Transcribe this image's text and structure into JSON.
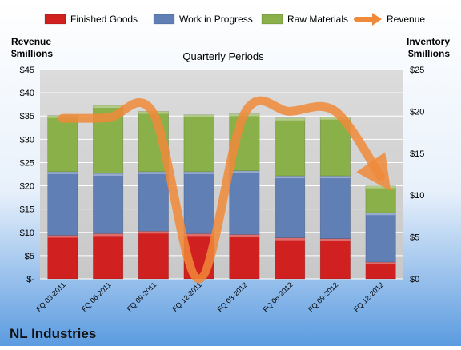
{
  "chart_data": {
    "type": "bar",
    "stacked": true,
    "title": "Quarterly Periods",
    "company": "NL Industries",
    "y_left_label_line1": "Revenue",
    "y_left_label_line2": "$millions",
    "y_right_label_line1": "Inventory",
    "y_right_label_line2": "$millions",
    "categories": [
      "FQ 03-2011",
      "FQ 06-2011",
      "FQ 09-2011",
      "FQ 12-2011",
      "FQ 03-2012",
      "FQ 06-2012",
      "FQ 09-2012",
      "FQ 12-2012"
    ],
    "series": [
      {
        "name": "Finished Goods",
        "axis": "right",
        "kind": "bar",
        "color": "#d02020",
        "values": [
          5.2,
          5.4,
          5.7,
          5.4,
          5.3,
          4.9,
          4.8,
          2.0
        ]
      },
      {
        "name": "Work in Progress",
        "axis": "right",
        "kind": "bar",
        "color": "#5f7fb5",
        "values": [
          7.6,
          7.2,
          7.1,
          7.4,
          7.6,
          7.4,
          7.5,
          5.9
        ]
      },
      {
        "name": "Raw Materials",
        "axis": "right",
        "kind": "bar",
        "color": "#8ab04a",
        "values": [
          6.7,
          8.1,
          7.2,
          6.8,
          6.8,
          6.9,
          7.0,
          3.2
        ]
      },
      {
        "name": "Revenue",
        "axis": "left",
        "kind": "line",
        "color": "#f08a3a",
        "values": [
          34.5,
          34.6,
          35.5,
          0,
          35.5,
          36.0,
          36.0,
          22.0
        ]
      }
    ],
    "left_axis": {
      "min": 0,
      "max": 45,
      "step": 5,
      "tick_labels": [
        "$-",
        "$5",
        "$10",
        "$15",
        "$20",
        "$25",
        "$30",
        "$35",
        "$40",
        "$45"
      ]
    },
    "right_axis": {
      "min": 0,
      "max": 25,
      "step": 5,
      "tick_labels": [
        "$0",
        "$5",
        "$10",
        "$15",
        "$20",
        "$25"
      ]
    },
    "grid": true,
    "legend_position": "top"
  }
}
